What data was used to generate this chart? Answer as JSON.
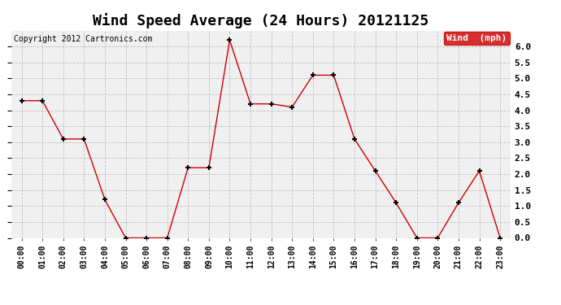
{
  "title": "Wind Speed Average (24 Hours) 20121125",
  "copyright": "Copyright 2012 Cartronics.com",
  "x_labels": [
    "00:00",
    "01:00",
    "02:00",
    "03:00",
    "04:00",
    "05:00",
    "06:00",
    "07:00",
    "08:00",
    "09:00",
    "10:00",
    "11:00",
    "12:00",
    "13:00",
    "14:00",
    "15:00",
    "16:00",
    "17:00",
    "18:00",
    "19:00",
    "20:00",
    "21:00",
    "22:00",
    "23:00"
  ],
  "y_values": [
    4.3,
    4.3,
    3.1,
    3.1,
    1.2,
    0.0,
    0.0,
    0.0,
    2.2,
    2.2,
    6.2,
    4.2,
    4.2,
    4.1,
    5.1,
    5.1,
    3.1,
    2.1,
    1.1,
    0.0,
    0.0,
    1.1,
    2.1,
    0.0
  ],
  "line_color": "#cc0000",
  "marker": "+",
  "marker_size": 5,
  "marker_color": "#000000",
  "ylim": [
    0.0,
    6.5
  ],
  "yticks": [
    0.0,
    0.5,
    1.0,
    1.5,
    2.0,
    2.5,
    3.0,
    3.5,
    4.0,
    4.5,
    5.0,
    5.5,
    6.0
  ],
  "legend_label": "Wind  (mph)",
  "legend_bg": "#cc0000",
  "legend_text_color": "#ffffff",
  "bg_color": "#ffffff",
  "plot_bg_color": "#f0f0f0",
  "grid_color": "#aaaaaa",
  "title_fontsize": 13,
  "copyright_fontsize": 7,
  "tick_fontsize": 7,
  "figsize": [
    6.9,
    3.75
  ],
  "dpi": 100
}
